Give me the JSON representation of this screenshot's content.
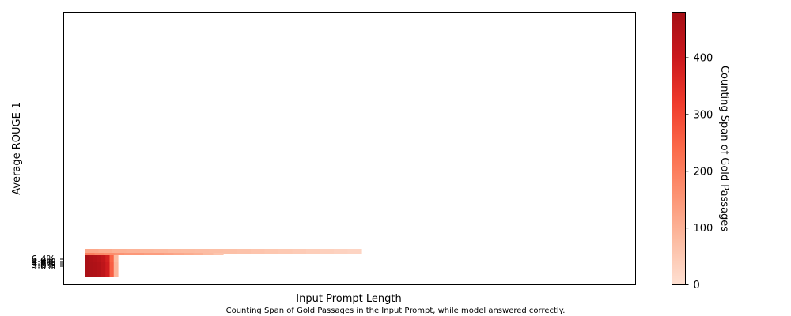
{
  "chart_data": {
    "type": "heatmap",
    "title": "",
    "xlabel": "Input Prompt Length",
    "ylabel": "Average ROUGE-1",
    "caption": "Counting Span of Gold Passages in the Input Prompt, while model answered correctly.",
    "y_ticks": [
      "6.4%",
      "4.8%",
      "4.6%",
      "3.6%",
      "3.0%"
    ],
    "colorbar": {
      "label": "Counting Span of Gold Passages",
      "min": 0,
      "max": 480,
      "ticks": [
        0,
        100,
        200,
        300,
        400
      ],
      "colors": [
        "#fee0d2",
        "#fcbba1",
        "#fc9272",
        "#fb6a4a",
        "#ef3b2c",
        "#cb181d",
        "#a50f15"
      ]
    },
    "rows": [
      {
        "y_label": "6.4%",
        "x_start": 0,
        "x_end": 1.0,
        "values": [
          120,
          110,
          100,
          95,
          90,
          85,
          80,
          78,
          75,
          72,
          70,
          65,
          60,
          55,
          50,
          45,
          40,
          35,
          30,
          25
        ]
      },
      {
        "y_label": "4.8%",
        "x_start": 0,
        "x_end": 0.5,
        "values": [
          200,
          180,
          170,
          160,
          150,
          150,
          140,
          140,
          130,
          120,
          110,
          100,
          80,
          60
        ]
      },
      {
        "y_label": "4.6%",
        "x_start": 0,
        "x_end": 0.12,
        "values": [
          470,
          460,
          450,
          440,
          420,
          380,
          250,
          80
        ]
      },
      {
        "y_label": "3.6%",
        "x_start": 0,
        "x_end": 0.12,
        "values": [
          470,
          465,
          460,
          450,
          430,
          390,
          260,
          90
        ]
      },
      {
        "y_label": "3.0%",
        "x_start": 0,
        "x_end": 0.12,
        "values": [
          470,
          465,
          460,
          450,
          430,
          390,
          260,
          90
        ]
      }
    ]
  }
}
